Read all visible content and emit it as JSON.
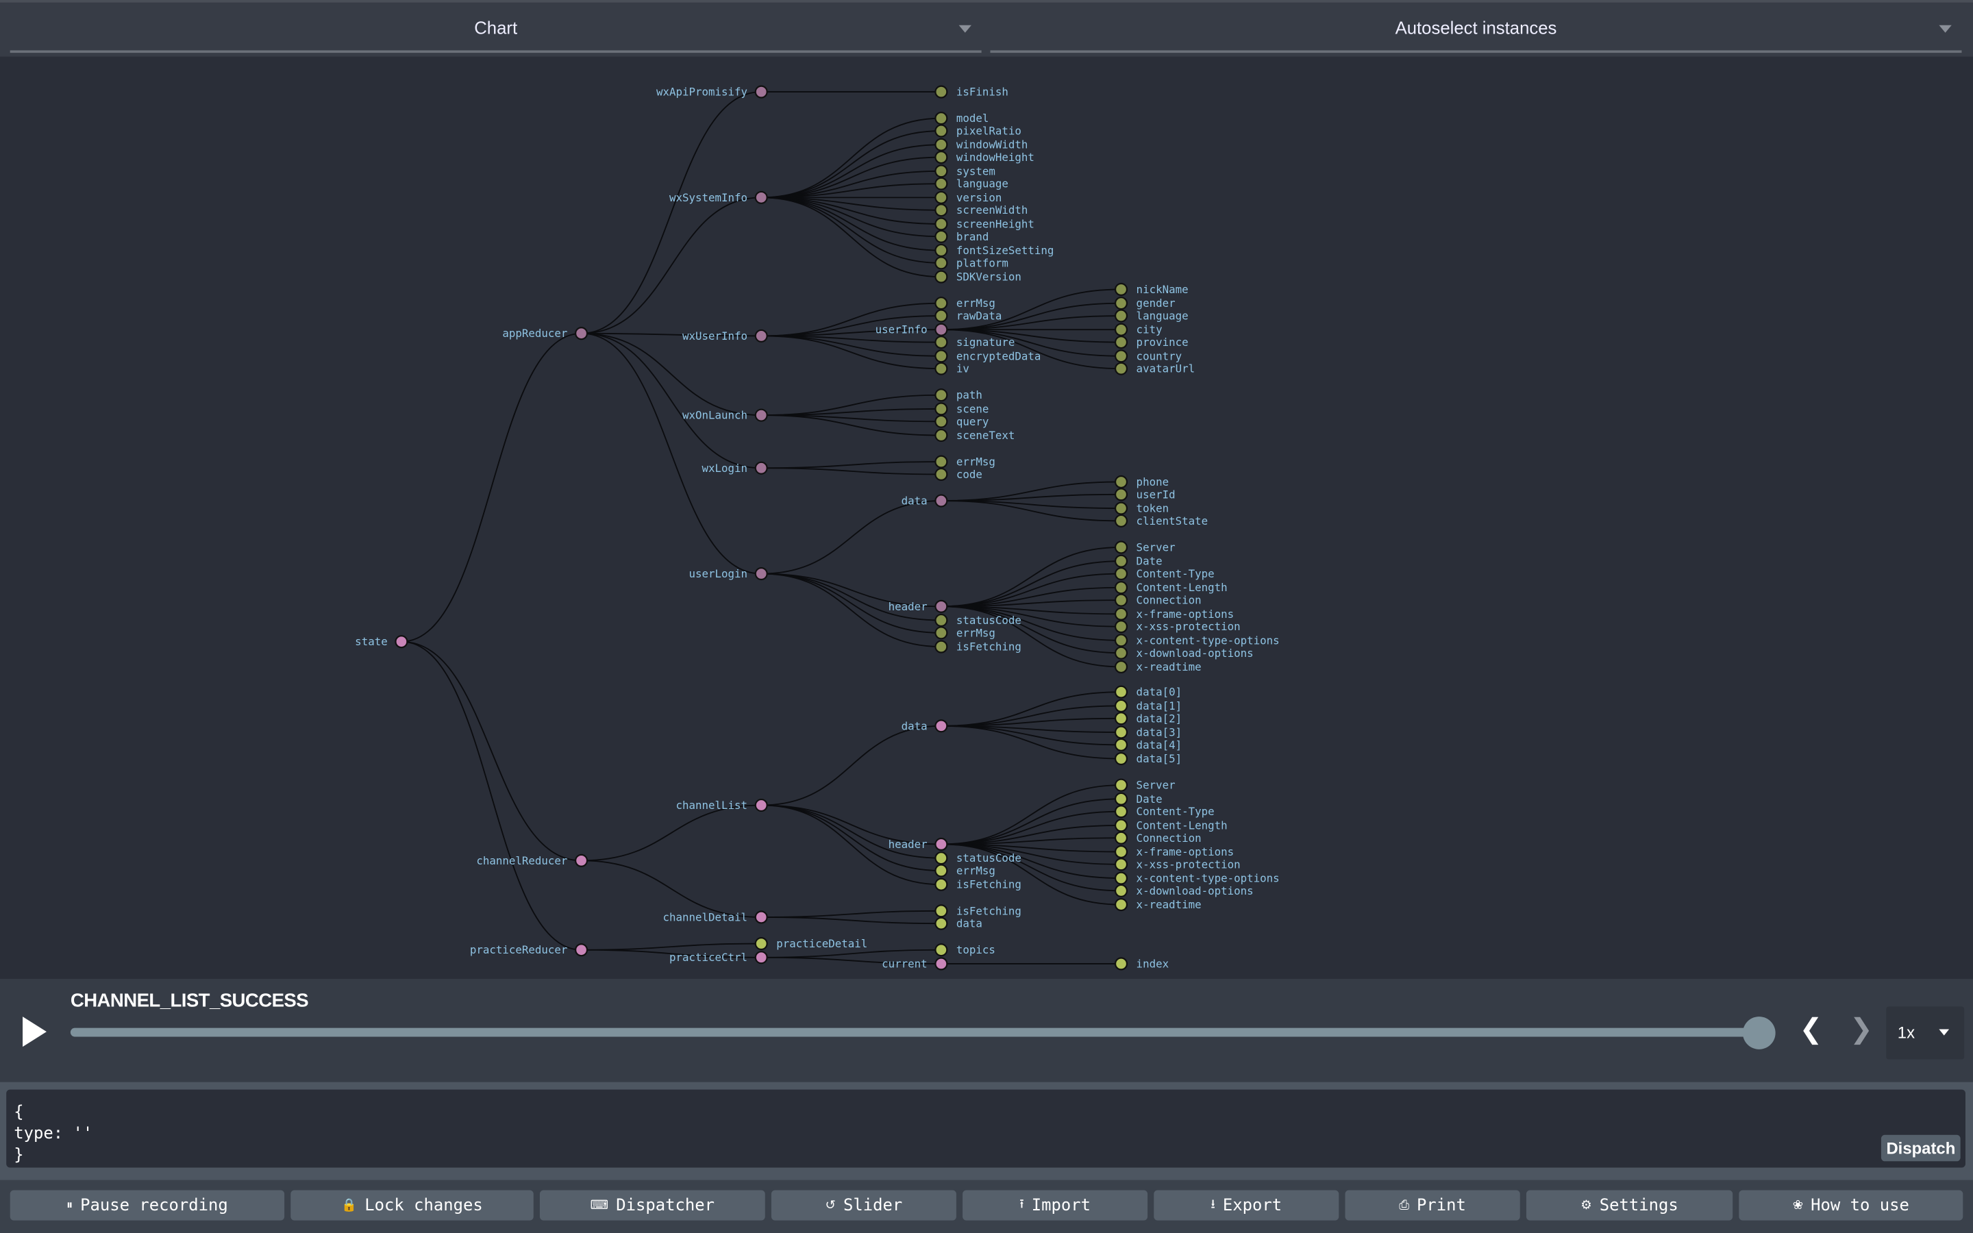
{
  "header": {
    "monitor_select": "Chart",
    "instance_select": "Autoselect instances"
  },
  "colors": {
    "object_node": "#c985b8",
    "object_node_muted": "#a07496",
    "leaf_node": "#b2c25c",
    "leaf_node_muted": "#86924d",
    "label": "#8fc3e3",
    "link": "#0b0c0f"
  },
  "tree": {
    "name": "state",
    "children": [
      {
        "name": "appReducer",
        "children": [
          {
            "name": "wxApiPromisify",
            "children": [
              {
                "name": "isFinish"
              }
            ]
          },
          {
            "name": "wxSystemInfo",
            "children": [
              {
                "name": "model"
              },
              {
                "name": "pixelRatio"
              },
              {
                "name": "windowWidth"
              },
              {
                "name": "windowHeight"
              },
              {
                "name": "system"
              },
              {
                "name": "language"
              },
              {
                "name": "version"
              },
              {
                "name": "screenWidth"
              },
              {
                "name": "screenHeight"
              },
              {
                "name": "brand"
              },
              {
                "name": "fontSizeSetting"
              },
              {
                "name": "platform"
              },
              {
                "name": "SDKVersion"
              }
            ]
          },
          {
            "name": "wxUserInfo",
            "children": [
              {
                "name": "errMsg"
              },
              {
                "name": "rawData"
              },
              {
                "name": "userInfo",
                "children": [
                  {
                    "name": "nickName"
                  },
                  {
                    "name": "gender"
                  },
                  {
                    "name": "language"
                  },
                  {
                    "name": "city"
                  },
                  {
                    "name": "province"
                  },
                  {
                    "name": "country"
                  },
                  {
                    "name": "avatarUrl"
                  }
                ]
              },
              {
                "name": "signature"
              },
              {
                "name": "encryptedData"
              },
              {
                "name": "iv"
              }
            ]
          },
          {
            "name": "wxOnLaunch",
            "children": [
              {
                "name": "path"
              },
              {
                "name": "scene"
              },
              {
                "name": "query"
              },
              {
                "name": "sceneText"
              }
            ]
          },
          {
            "name": "wxLogin",
            "children": [
              {
                "name": "errMsg"
              },
              {
                "name": "code"
              }
            ]
          },
          {
            "name": "userLogin",
            "children": [
              {
                "name": "data",
                "children": [
                  {
                    "name": "phone"
                  },
                  {
                    "name": "userId"
                  },
                  {
                    "name": "token"
                  },
                  {
                    "name": "clientState"
                  }
                ]
              },
              {
                "name": "header",
                "children": [
                  {
                    "name": "Server"
                  },
                  {
                    "name": "Date"
                  },
                  {
                    "name": "Content-Type"
                  },
                  {
                    "name": "Content-Length"
                  },
                  {
                    "name": "Connection"
                  },
                  {
                    "name": "x-frame-options"
                  },
                  {
                    "name": "x-xss-protection"
                  },
                  {
                    "name": "x-content-type-options"
                  },
                  {
                    "name": "x-download-options"
                  },
                  {
                    "name": "x-readtime"
                  }
                ]
              },
              {
                "name": "statusCode"
              },
              {
                "name": "errMsg"
              },
              {
                "name": "isFetching"
              }
            ]
          }
        ]
      },
      {
        "name": "channelReducer",
        "children": [
          {
            "name": "channelList",
            "children": [
              {
                "name": "data",
                "children": [
                  {
                    "name": "data[0]"
                  },
                  {
                    "name": "data[1]"
                  },
                  {
                    "name": "data[2]"
                  },
                  {
                    "name": "data[3]"
                  },
                  {
                    "name": "data[4]"
                  },
                  {
                    "name": "data[5]"
                  }
                ]
              },
              {
                "name": "header",
                "children": [
                  {
                    "name": "Server"
                  },
                  {
                    "name": "Date"
                  },
                  {
                    "name": "Content-Type"
                  },
                  {
                    "name": "Content-Length"
                  },
                  {
                    "name": "Connection"
                  },
                  {
                    "name": "x-frame-options"
                  },
                  {
                    "name": "x-xss-protection"
                  },
                  {
                    "name": "x-content-type-options"
                  },
                  {
                    "name": "x-download-options"
                  },
                  {
                    "name": "x-readtime"
                  }
                ]
              },
              {
                "name": "statusCode"
              },
              {
                "name": "errMsg"
              },
              {
                "name": "isFetching"
              }
            ]
          },
          {
            "name": "channelDetail",
            "children": [
              {
                "name": "isFetching"
              },
              {
                "name": "data"
              }
            ]
          }
        ]
      },
      {
        "name": "practiceReducer",
        "children": [
          {
            "name": "practiceDetail"
          },
          {
            "name": "practiceCtrl",
            "children": [
              {
                "name": "topics"
              },
              {
                "name": "current",
                "children": [
                  {
                    "name": "index"
                  }
                ]
              }
            ]
          }
        ]
      }
    ]
  },
  "slider": {
    "action_name": "CHANNEL_LIST_SUCCESS",
    "position_percent": 100,
    "speed": "1x"
  },
  "dispatcher": {
    "code": "{\ntype: ''\n}",
    "dispatch_label": "Dispatch"
  },
  "toolbar": [
    {
      "label": "Pause recording",
      "icon": "pause-circle-icon"
    },
    {
      "label": "Lock changes",
      "icon": "lock-icon"
    },
    {
      "label": "Dispatcher",
      "icon": "keyboard-icon"
    },
    {
      "label": "Slider",
      "icon": "history-icon"
    },
    {
      "label": "Import",
      "icon": "upload-icon"
    },
    {
      "label": "Export",
      "icon": "download-icon"
    },
    {
      "label": "Print",
      "icon": "print-icon"
    },
    {
      "label": "Settings",
      "icon": "gear-icon"
    },
    {
      "label": "How to use",
      "icon": "lightbulb-icon"
    }
  ]
}
